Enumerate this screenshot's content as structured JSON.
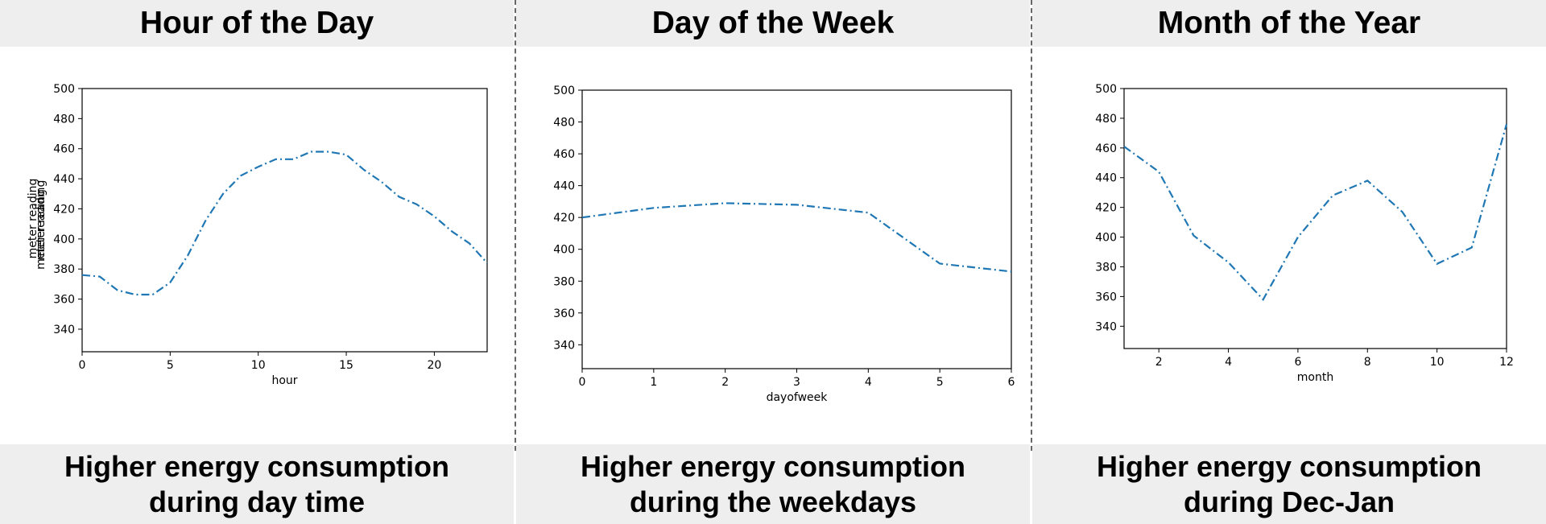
{
  "panels": [
    {
      "header": "Hour of the Day",
      "caption_line1": "Higher energy consumption",
      "caption_line2": "during day time"
    },
    {
      "header": "Day of the Week",
      "caption_line1": "Higher energy consumption",
      "caption_line2": "during the weekdays"
    },
    {
      "header": "Month of the Year",
      "caption_line1": "Higher energy consumption",
      "caption_line2": "during Dec-Jan"
    }
  ],
  "colors": {
    "line": "#1f77b4",
    "band": "#eeeeee"
  },
  "chart_data": [
    {
      "type": "line",
      "title": "",
      "xlabel": "hour",
      "ylabel": "meter reading",
      "xlim": [
        0,
        23
      ],
      "ylim": [
        325,
        500
      ],
      "xticks": [
        0,
        5,
        10,
        15,
        20
      ],
      "yticks": [
        340,
        360,
        380,
        400,
        420,
        440,
        460,
        480,
        500
      ],
      "grid": false,
      "line_style": "dashdot",
      "x": [
        0,
        1,
        2,
        3,
        4,
        5,
        6,
        7,
        8,
        9,
        10,
        11,
        12,
        13,
        14,
        15,
        16,
        17,
        18,
        19,
        20,
        21,
        22,
        23
      ],
      "values": [
        376,
        375,
        366,
        363,
        363,
        371,
        389,
        412,
        430,
        442,
        448,
        453,
        453,
        458,
        458,
        456,
        446,
        438,
        428,
        423,
        415,
        405,
        397,
        384
      ]
    },
    {
      "type": "line",
      "title": "",
      "xlabel": "dayofweek",
      "ylabel": "meter reading",
      "xlim": [
        0,
        6
      ],
      "ylim": [
        325,
        500
      ],
      "xticks": [
        0,
        1,
        2,
        3,
        4,
        5,
        6
      ],
      "yticks": [
        340,
        360,
        380,
        400,
        420,
        440,
        460,
        480,
        500
      ],
      "grid": false,
      "line_style": "dashdot",
      "x": [
        0,
        1,
        2,
        3,
        4,
        5,
        6
      ],
      "values": [
        420,
        426,
        429,
        428,
        423,
        391,
        386
      ]
    },
    {
      "type": "line",
      "title": "",
      "xlabel": "month",
      "ylabel": "meter reading",
      "xlim": [
        1,
        12
      ],
      "ylim": [
        325,
        500
      ],
      "xticks": [
        2,
        4,
        6,
        8,
        10,
        12
      ],
      "yticks": [
        340,
        360,
        380,
        400,
        420,
        440,
        460,
        480,
        500
      ],
      "grid": false,
      "line_style": "dashdot",
      "x": [
        1,
        2,
        3,
        4,
        5,
        6,
        7,
        8,
        9,
        10,
        11,
        12
      ],
      "values": [
        461,
        444,
        401,
        383,
        358,
        400,
        428,
        438,
        417,
        382,
        393,
        476
      ]
    }
  ]
}
